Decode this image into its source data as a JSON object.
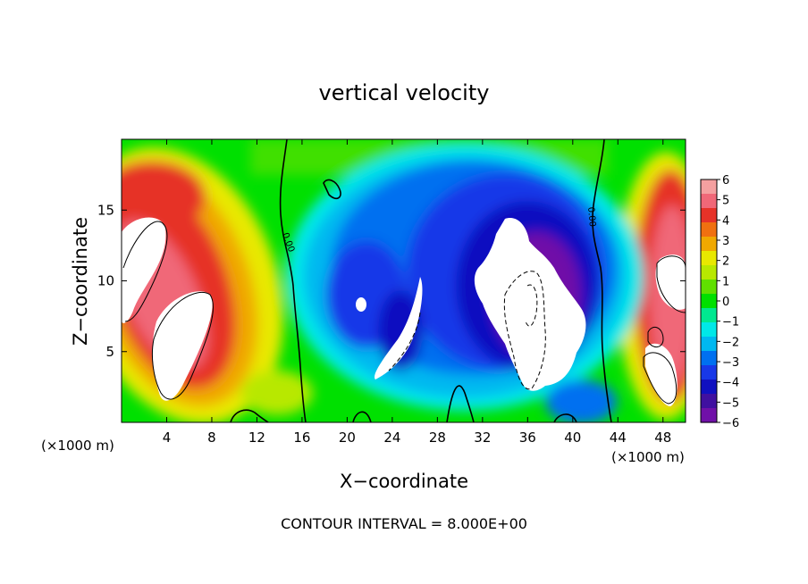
{
  "chart_data": {
    "type": "heatmap",
    "title": "vertical velocity",
    "xlabel": "X−coordinate",
    "ylabel": "Z−coordinate",
    "x_unit_left": "(×1000 m)",
    "x_unit_right": "(×1000 m)",
    "xlim": [
      0,
      50
    ],
    "ylim": [
      0,
      20
    ],
    "x_ticks": [
      4,
      8,
      12,
      16,
      20,
      24,
      28,
      32,
      36,
      40,
      44,
      48
    ],
    "x_tick_labels": [
      "4",
      "8",
      "12",
      "16",
      "20",
      "24",
      "28",
      "32",
      "36",
      "40",
      "44",
      "48"
    ],
    "y_ticks": [
      5,
      10,
      15
    ],
    "y_tick_labels": [
      "5",
      "10",
      "15"
    ],
    "colorbar": {
      "range": [
        -6,
        6
      ],
      "labels": [
        "6",
        "5",
        "4",
        "3",
        "2",
        "1",
        "0",
        "−1",
        "−2",
        "−3",
        "−4",
        "−5",
        "−6"
      ],
      "colors": [
        "#f4a0a0",
        "#f06878",
        "#e63228",
        "#f07010",
        "#f0a800",
        "#e8e800",
        "#b8e800",
        "#60e000",
        "#00e000",
        "#00e890",
        "#00e8e8",
        "#00b8f0",
        "#0070f0",
        "#1838e8",
        "#1010c0",
        "#4010a0",
        "#7010a8"
      ]
    },
    "zero_contour_labels": [
      "0.00",
      "0.00"
    ],
    "annotation": "CONTOUR INTERVAL = 8.000E+00",
    "features": [
      {
        "kind": "updraft",
        "x": 3.5,
        "z": 10,
        "value": 6
      },
      {
        "kind": "updraft",
        "x": 48,
        "z": 8,
        "value": 6
      },
      {
        "kind": "downdraft",
        "x": 35,
        "z": 9,
        "value": -6
      },
      {
        "kind": "downdraft",
        "x": 26,
        "z": 7,
        "value": -6
      },
      {
        "kind": "downdraft",
        "x": 20.5,
        "z": 8.5,
        "value": -5
      }
    ]
  }
}
